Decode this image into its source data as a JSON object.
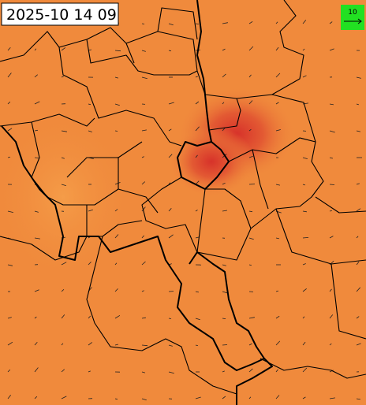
{
  "timestamp": "2025-10 14 09",
  "legend": {
    "label": "10"
  }
}
